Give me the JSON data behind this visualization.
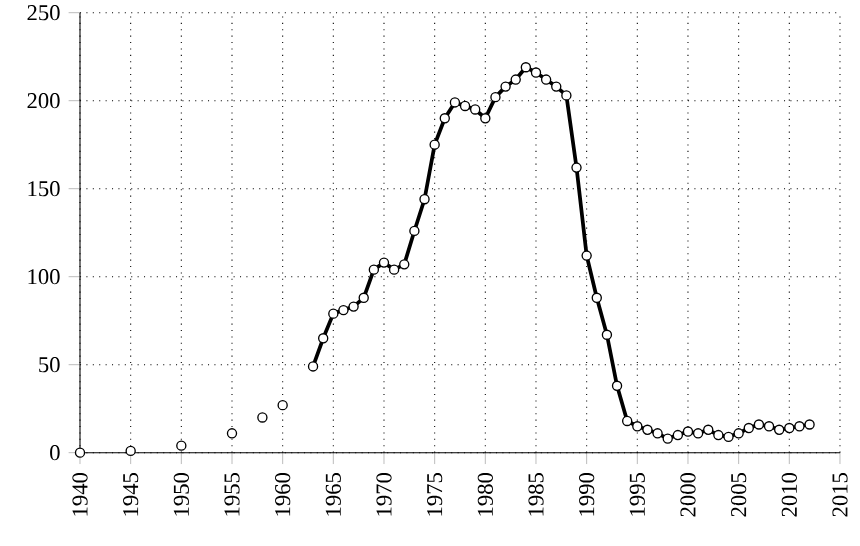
{
  "chart_data": {
    "type": "line",
    "series": [
      {
        "type": "scatter",
        "color": "#000000",
        "x": [
          1940,
          1945,
          1950,
          1955,
          1958,
          1960
        ],
        "values": [
          0,
          1,
          4,
          11,
          20,
          27
        ]
      },
      {
        "color": "#000000",
        "x": [
          1963,
          1964,
          1965,
          1966,
          1967,
          1968,
          1969,
          1970,
          1971,
          1972,
          1973,
          1974,
          1975,
          1976,
          1977,
          1978,
          1979,
          1980,
          1981,
          1982,
          1983,
          1984,
          1985,
          1986,
          1987,
          1988,
          1989,
          1990,
          1991,
          1992,
          1993,
          1994,
          1995,
          1996,
          1997,
          1998,
          1999,
          2000,
          2001,
          2002,
          2003,
          2004,
          2005,
          2006,
          2007,
          2008,
          2009,
          2010,
          2011,
          2012
        ],
        "values": [
          49,
          65,
          79,
          81,
          83,
          88,
          104,
          108,
          104,
          107,
          126,
          144,
          175,
          190,
          199,
          197,
          195,
          190,
          202,
          208,
          212,
          219,
          216,
          212,
          208,
          203,
          162,
          112,
          88,
          67,
          38,
          18,
          15,
          13,
          11,
          8,
          10,
          12,
          11,
          13,
          10,
          9,
          11,
          14,
          16,
          15,
          13,
          14,
          15,
          16
        ]
      }
    ],
    "xlim": [
      1940,
      2015
    ],
    "xticks": [
      1940,
      1945,
      1950,
      1955,
      1960,
      1965,
      1970,
      1975,
      1980,
      1985,
      1990,
      1995,
      2000,
      2005,
      2010,
      2015
    ],
    "ylim": [
      0,
      250
    ],
    "yticks": [
      0,
      50,
      100,
      150,
      200,
      250
    ],
    "grid": true,
    "marker": "circle",
    "line_style": "solid"
  }
}
